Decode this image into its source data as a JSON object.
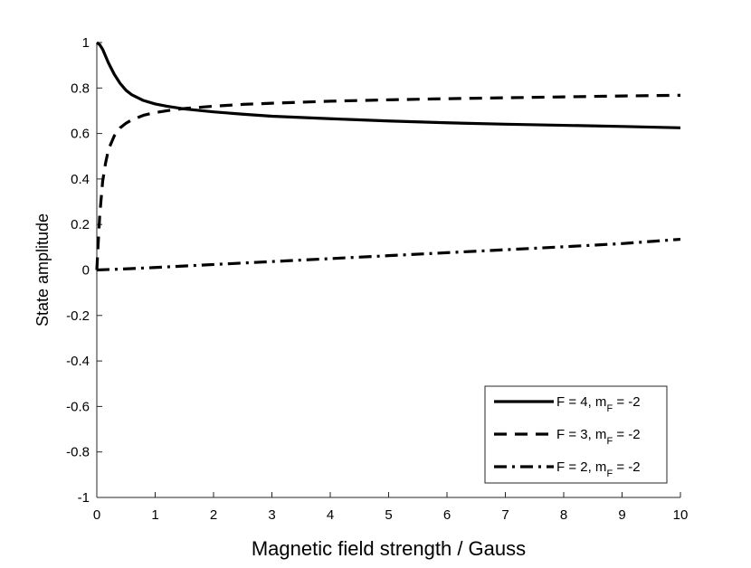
{
  "chart_data": {
    "type": "line",
    "title": "",
    "xlabel": "Magnetic field strength / Gauss",
    "ylabel": "State amplitude",
    "xlim": [
      0,
      10
    ],
    "ylim": [
      -1,
      1
    ],
    "x_ticks": [
      0,
      1,
      2,
      3,
      4,
      5,
      6,
      7,
      8,
      9,
      10
    ],
    "y_ticks": [
      -1,
      -0.8,
      -0.6,
      -0.4,
      -0.2,
      0,
      0.2,
      0.4,
      0.6,
      0.8,
      1
    ],
    "x_tick_labels": [
      "0",
      "1",
      "2",
      "3",
      "4",
      "5",
      "6",
      "7",
      "8",
      "9",
      "10"
    ],
    "y_tick_labels": [
      "-1",
      "-0.8",
      "-0.6",
      "-0.4",
      "-0.2",
      "0",
      "0.2",
      "0.4",
      "0.6",
      "0.8",
      "1"
    ],
    "grid": false,
    "legend_position": "bottom-right",
    "series": [
      {
        "name": "F = 4, m_F = -2",
        "label_main": "F = 4, m",
        "label_sub": "F",
        "label_tail": " = -2",
        "style": "solid",
        "color": "#000000",
        "x": [
          0,
          0.05,
          0.1,
          0.2,
          0.3,
          0.4,
          0.5,
          0.6,
          0.8,
          1.0,
          1.2,
          1.5,
          2,
          2.5,
          3,
          4,
          5,
          6,
          7,
          8,
          9,
          10
        ],
        "y": [
          1.0,
          0.99,
          0.97,
          0.91,
          0.86,
          0.82,
          0.79,
          0.77,
          0.745,
          0.73,
          0.72,
          0.708,
          0.695,
          0.685,
          0.676,
          0.665,
          0.655,
          0.647,
          0.641,
          0.636,
          0.631,
          0.625
        ]
      },
      {
        "name": "F = 3, m_F = -2",
        "label_main": "F = 3, m",
        "label_sub": "F",
        "label_tail": " = -2",
        "style": "dashed",
        "color": "#000000",
        "x": [
          0,
          0.02,
          0.05,
          0.1,
          0.15,
          0.2,
          0.3,
          0.4,
          0.5,
          0.6,
          0.8,
          1.0,
          1.2,
          1.5,
          2,
          2.5,
          3,
          4,
          5,
          6,
          7,
          8,
          9,
          10
        ],
        "y": [
          0.0,
          0.1,
          0.24,
          0.39,
          0.47,
          0.53,
          0.59,
          0.625,
          0.645,
          0.66,
          0.68,
          0.692,
          0.7,
          0.71,
          0.72,
          0.728,
          0.733,
          0.742,
          0.748,
          0.753,
          0.757,
          0.761,
          0.765,
          0.768
        ]
      },
      {
        "name": "F = 2, m_F = -2",
        "label_main": "F = 2, m",
        "label_sub": "F",
        "label_tail": " = -2",
        "style": "dashdot",
        "color": "#000000",
        "x": [
          0,
          0.5,
          1,
          2,
          3,
          4,
          5,
          6,
          7,
          8,
          9,
          10
        ],
        "y": [
          0.0,
          0.005,
          0.011,
          0.024,
          0.037,
          0.05,
          0.063,
          0.076,
          0.089,
          0.102,
          0.116,
          0.135
        ]
      }
    ]
  }
}
